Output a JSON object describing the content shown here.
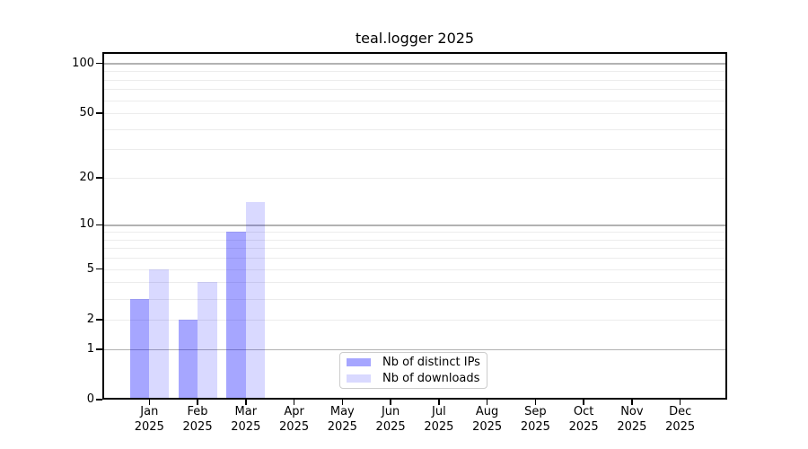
{
  "title": "teal.logger 2025",
  "chart_data": {
    "type": "bar",
    "title": "teal.logger 2025",
    "months": [
      "Jan",
      "Feb",
      "Mar",
      "Apr",
      "May",
      "Jun",
      "Jul",
      "Aug",
      "Sep",
      "Oct",
      "Nov",
      "Dec"
    ],
    "x_tick_year": "2025",
    "series": [
      {
        "name": "Nb of distinct IPs",
        "color": "#0000FF59",
        "values": [
          3,
          2,
          9,
          0,
          0,
          0,
          0,
          0,
          0,
          0,
          0,
          0
        ]
      },
      {
        "name": "Nb of downloads",
        "color": "#0000FF26",
        "values": [
          5,
          4,
          14,
          0,
          0,
          0,
          0,
          0,
          0,
          0,
          0,
          0
        ]
      }
    ],
    "y_scale": "log1p",
    "ylim": [
      0,
      117
    ],
    "y_ticks": [
      0,
      1,
      2,
      5,
      10,
      20,
      50,
      100
    ],
    "grid_minor": [
      2,
      3,
      4,
      5,
      6,
      7,
      8,
      9,
      20,
      30,
      40,
      50,
      60,
      70,
      80,
      90
    ],
    "grid_major": [
      1,
      10,
      100
    ],
    "legend_position": "lower center",
    "grid_on": true,
    "colors": {
      "bar_distinct_ips": "#a6a6ff",
      "bar_downloads": "#d9d9ff",
      "grid_major": "#b2b2b2",
      "grid_minor": "#ececec",
      "spine": "#000000",
      "background": "#ffffff"
    }
  }
}
